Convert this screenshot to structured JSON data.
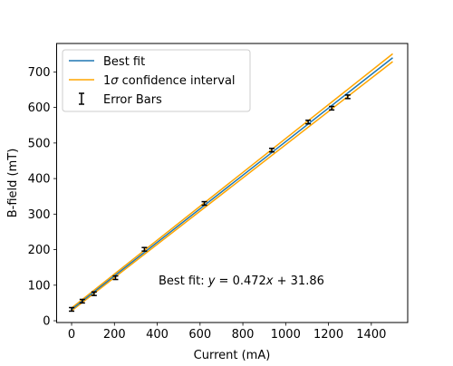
{
  "chart_data": {
    "type": "line",
    "xlabel": "Current (mA)",
    "ylabel": "B-field (mT)",
    "xlim": [
      -70,
      1570
    ],
    "ylim": [
      -5,
      780
    ],
    "xticks": [
      0,
      200,
      400,
      600,
      800,
      1000,
      1200,
      1400
    ],
    "yticks": [
      0,
      100,
      200,
      300,
      400,
      500,
      600,
      700
    ],
    "grid": false,
    "legend_position": "upper-left",
    "series": [
      {
        "name": "Best fit",
        "kind": "line",
        "color": "#1f77b4",
        "x": [
          0,
          1500
        ],
        "y": [
          31.86,
          739.86
        ]
      },
      {
        "name": "1σ confidence interval",
        "kind": "band",
        "color": "#ffa500",
        "x": [
          0,
          1500
        ],
        "y_lower": [
          28,
          729
        ],
        "y_upper": [
          36,
          751
        ]
      },
      {
        "name": "Error Bars",
        "kind": "errorbar",
        "color": "#000000",
        "x": [
          0,
          50,
          105,
          205,
          340,
          620,
          935,
          1105,
          1215,
          1290
        ],
        "y": [
          32,
          55,
          76,
          121,
          201,
          330,
          480,
          559,
          598,
          630
        ],
        "err": [
          5,
          5,
          5,
          5,
          5,
          5,
          5,
          5,
          5,
          5
        ]
      }
    ],
    "annotation": {
      "prefix": "Best fit: ",
      "lhs": "y",
      "rhs": " = 0.472",
      "var": "x",
      "tail": " + 31.86",
      "x": 400,
      "y": 110
    }
  },
  "legend": {
    "best_fit": "Best fit",
    "ci_one": "1",
    "ci_sigma": "σ",
    "ci_rest": " confidence interval",
    "error_bars": "Error Bars"
  }
}
